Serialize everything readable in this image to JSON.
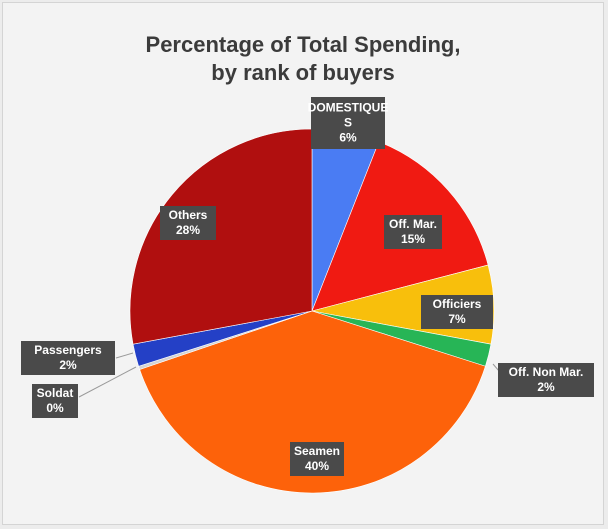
{
  "chart_data": {
    "type": "pie",
    "title": "Percentage of Total Spending,",
    "subtitle": "by rank of buyers",
    "start_angle_deg": 0,
    "direction": "clockwise",
    "slices": [
      {
        "label_lines": [
          "DOMESTIQUE",
          "S"
        ],
        "value_label": "6%",
        "value": 6,
        "color": "#4a7cf3"
      },
      {
        "label_lines": [
          "Off. Mar."
        ],
        "value_label": "15%",
        "value": 15,
        "color": "#f01a12"
      },
      {
        "label_lines": [
          "Officiers"
        ],
        "value_label": "7%",
        "value": 7,
        "color": "#f8bf0c"
      },
      {
        "label_lines": [
          "Off. Non Mar."
        ],
        "value_label": "2%",
        "value": 2,
        "color": "#27b556"
      },
      {
        "label_lines": [
          "Seamen"
        ],
        "value_label": "40%",
        "value": 40,
        "color": "#fd620a"
      },
      {
        "label_lines": [
          "Soldat"
        ],
        "value_label": "0%",
        "value": 0.3,
        "color": "#d4d4d4"
      },
      {
        "label_lines": [
          "Passengers"
        ],
        "value_label": "2%",
        "value": 2,
        "color": "#2440c6"
      },
      {
        "label_lines": [
          "Others"
        ],
        "value_label": "28%",
        "value": 28,
        "color": "#b00f0f"
      }
    ]
  }
}
